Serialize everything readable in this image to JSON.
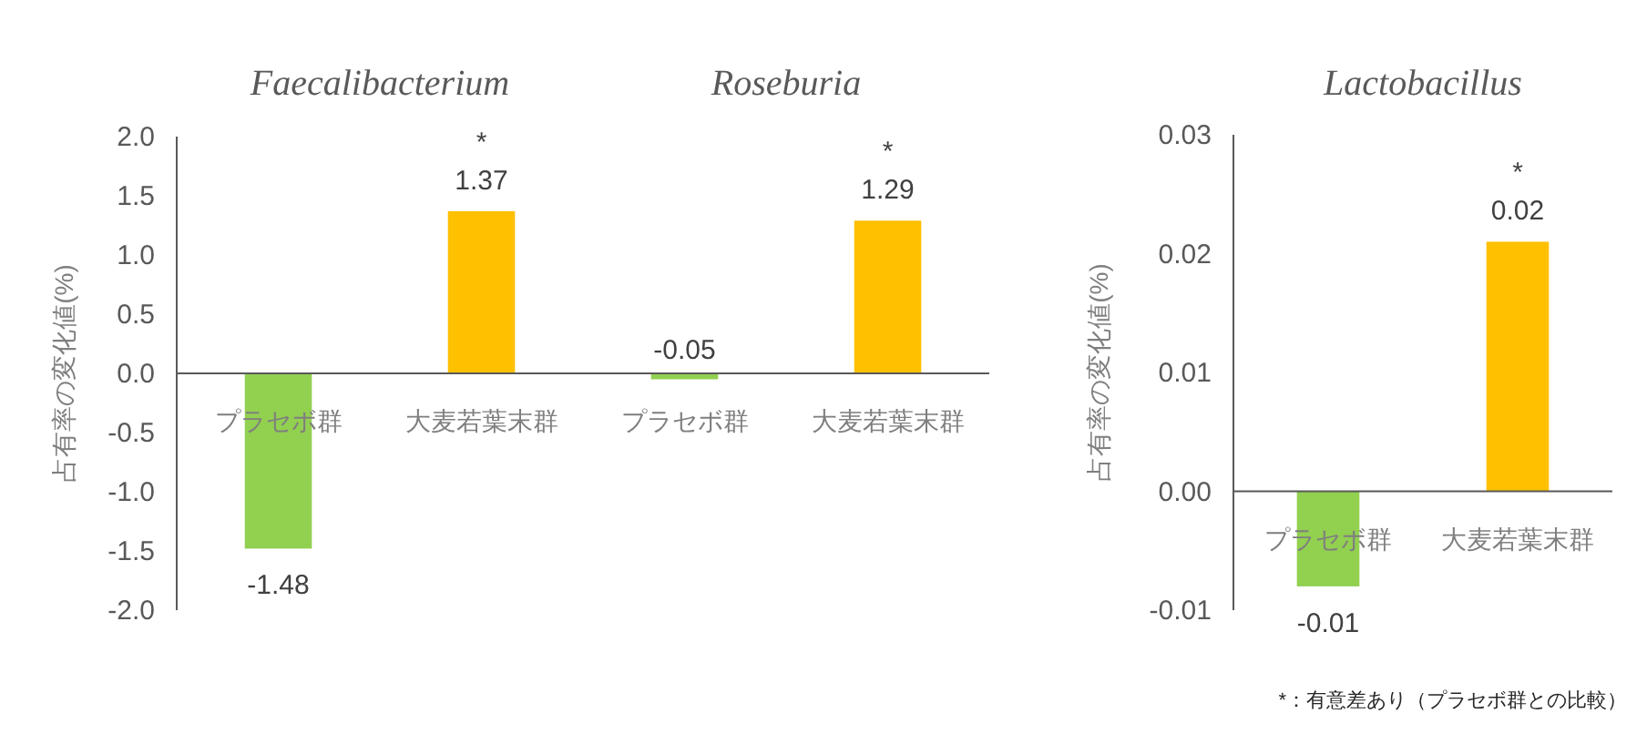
{
  "chart_data": [
    {
      "type": "bar",
      "title": "Faecalibacterium",
      "ylabel": "占有率の変化値(%)",
      "categories": [
        "プラセボ群",
        "大麦若葉末群"
      ],
      "values": [
        -1.48,
        1.37
      ],
      "colors": [
        "#92d050",
        "#ffc000"
      ],
      "ylim": [
        -2,
        2
      ],
      "yticks": [
        {
          "value": -2,
          "label": "-2.0"
        },
        {
          "value": -1.5,
          "label": "-1.5"
        },
        {
          "value": -1,
          "label": "-1.0"
        },
        {
          "value": -0.5,
          "label": "-0.5"
        },
        {
          "value": 0,
          "label": "0.0"
        },
        {
          "value": 0.5,
          "label": "0.5"
        },
        {
          "value": 1,
          "label": "1.0"
        },
        {
          "value": 1.5,
          "label": "1.5"
        },
        {
          "value": 2,
          "label": "2.0"
        }
      ],
      "data_labels": true,
      "annotations": [
        {
          "text": "*",
          "x": "大麦若葉末群",
          "y": 1.37
        }
      ]
    },
    {
      "type": "bar",
      "title": "Roseburia",
      "categories": [
        "プラセボ群",
        "大麦若葉末群"
      ],
      "values": [
        -0.05,
        1.29
      ],
      "colors": [
        "#92d050",
        "#ffc000"
      ],
      "ylim": [
        -2,
        2
      ],
      "tick_labels": "x",
      "data_labels": true,
      "annotations": [
        {
          "text": "*",
          "x": "大麦若葉末群",
          "y": 1.29
        }
      ]
    },
    {
      "type": "bar",
      "title": "Lactobacillus",
      "ylabel": "占有率の変化値(%)",
      "categories": [
        "プラセボ群",
        "大麦若葉末群"
      ],
      "values": [
        -0.008,
        0.021
      ],
      "value_labels": [
        "-0.01",
        "0.02"
      ],
      "colors": [
        "#92d050",
        "#ffc000"
      ],
      "ylim": [
        -0.01,
        0.03
      ],
      "yticks": [
        {
          "value": -0.01,
          "label": "-0.01"
        },
        {
          "value": 0,
          "label": "0.00"
        },
        {
          "value": 0.01,
          "label": "0.01"
        },
        {
          "value": 0.02,
          "label": "0.02"
        },
        {
          "value": 0.03,
          "label": "0.03"
        }
      ],
      "annotations": [
        {
          "text": "*",
          "x": "大麦若葉末群",
          "y": 0.021
        },
        "*：有意差あり（プラセボ群との比較）"
      ]
    }
  ]
}
